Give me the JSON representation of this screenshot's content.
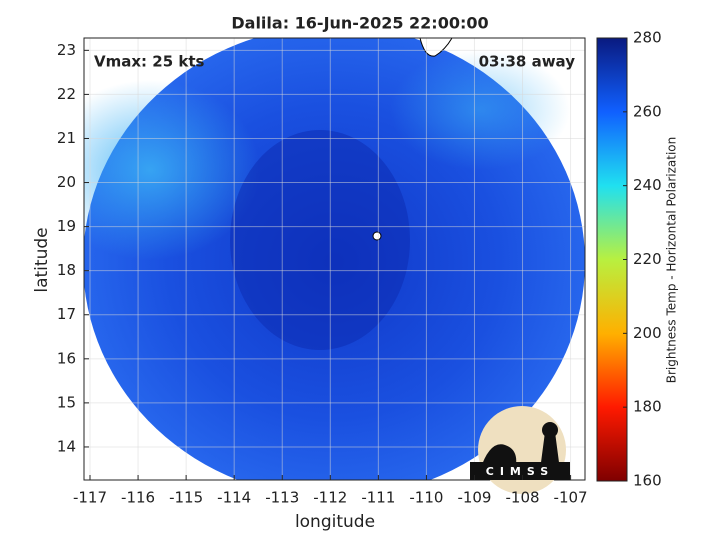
{
  "chart_data": {
    "type": "map",
    "title": "Dalila: 16-Jun-2025 22:00:00",
    "xlabel": "longitude",
    "ylabel": "latitude",
    "xlim": [
      -117.125,
      -106.7
    ],
    "ylim": [
      13.25,
      23.28
    ],
    "xticks": [
      -117,
      -116,
      -115,
      -114,
      -113,
      -112,
      -111,
      -110,
      -109,
      -108,
      -107
    ],
    "yticks": [
      14,
      15,
      16,
      17,
      18,
      19,
      20,
      21,
      22,
      23
    ],
    "grid": true,
    "annotations": [
      "Vmax: 25 kts",
      "03:38 away"
    ],
    "logo_text": "CIMSS",
    "colorbar": {
      "label": "Brightness Temp - Horizontal Polarization",
      "lim": [
        160,
        280
      ],
      "ticks": [
        160,
        180,
        200,
        220,
        240,
        260,
        280
      ],
      "colormap": [
        "#7f0000",
        "#ff1a00",
        "#ffb000",
        "#b8f040",
        "#20e0f0",
        "#1060ff",
        "#0a1a80"
      ]
    }
  }
}
